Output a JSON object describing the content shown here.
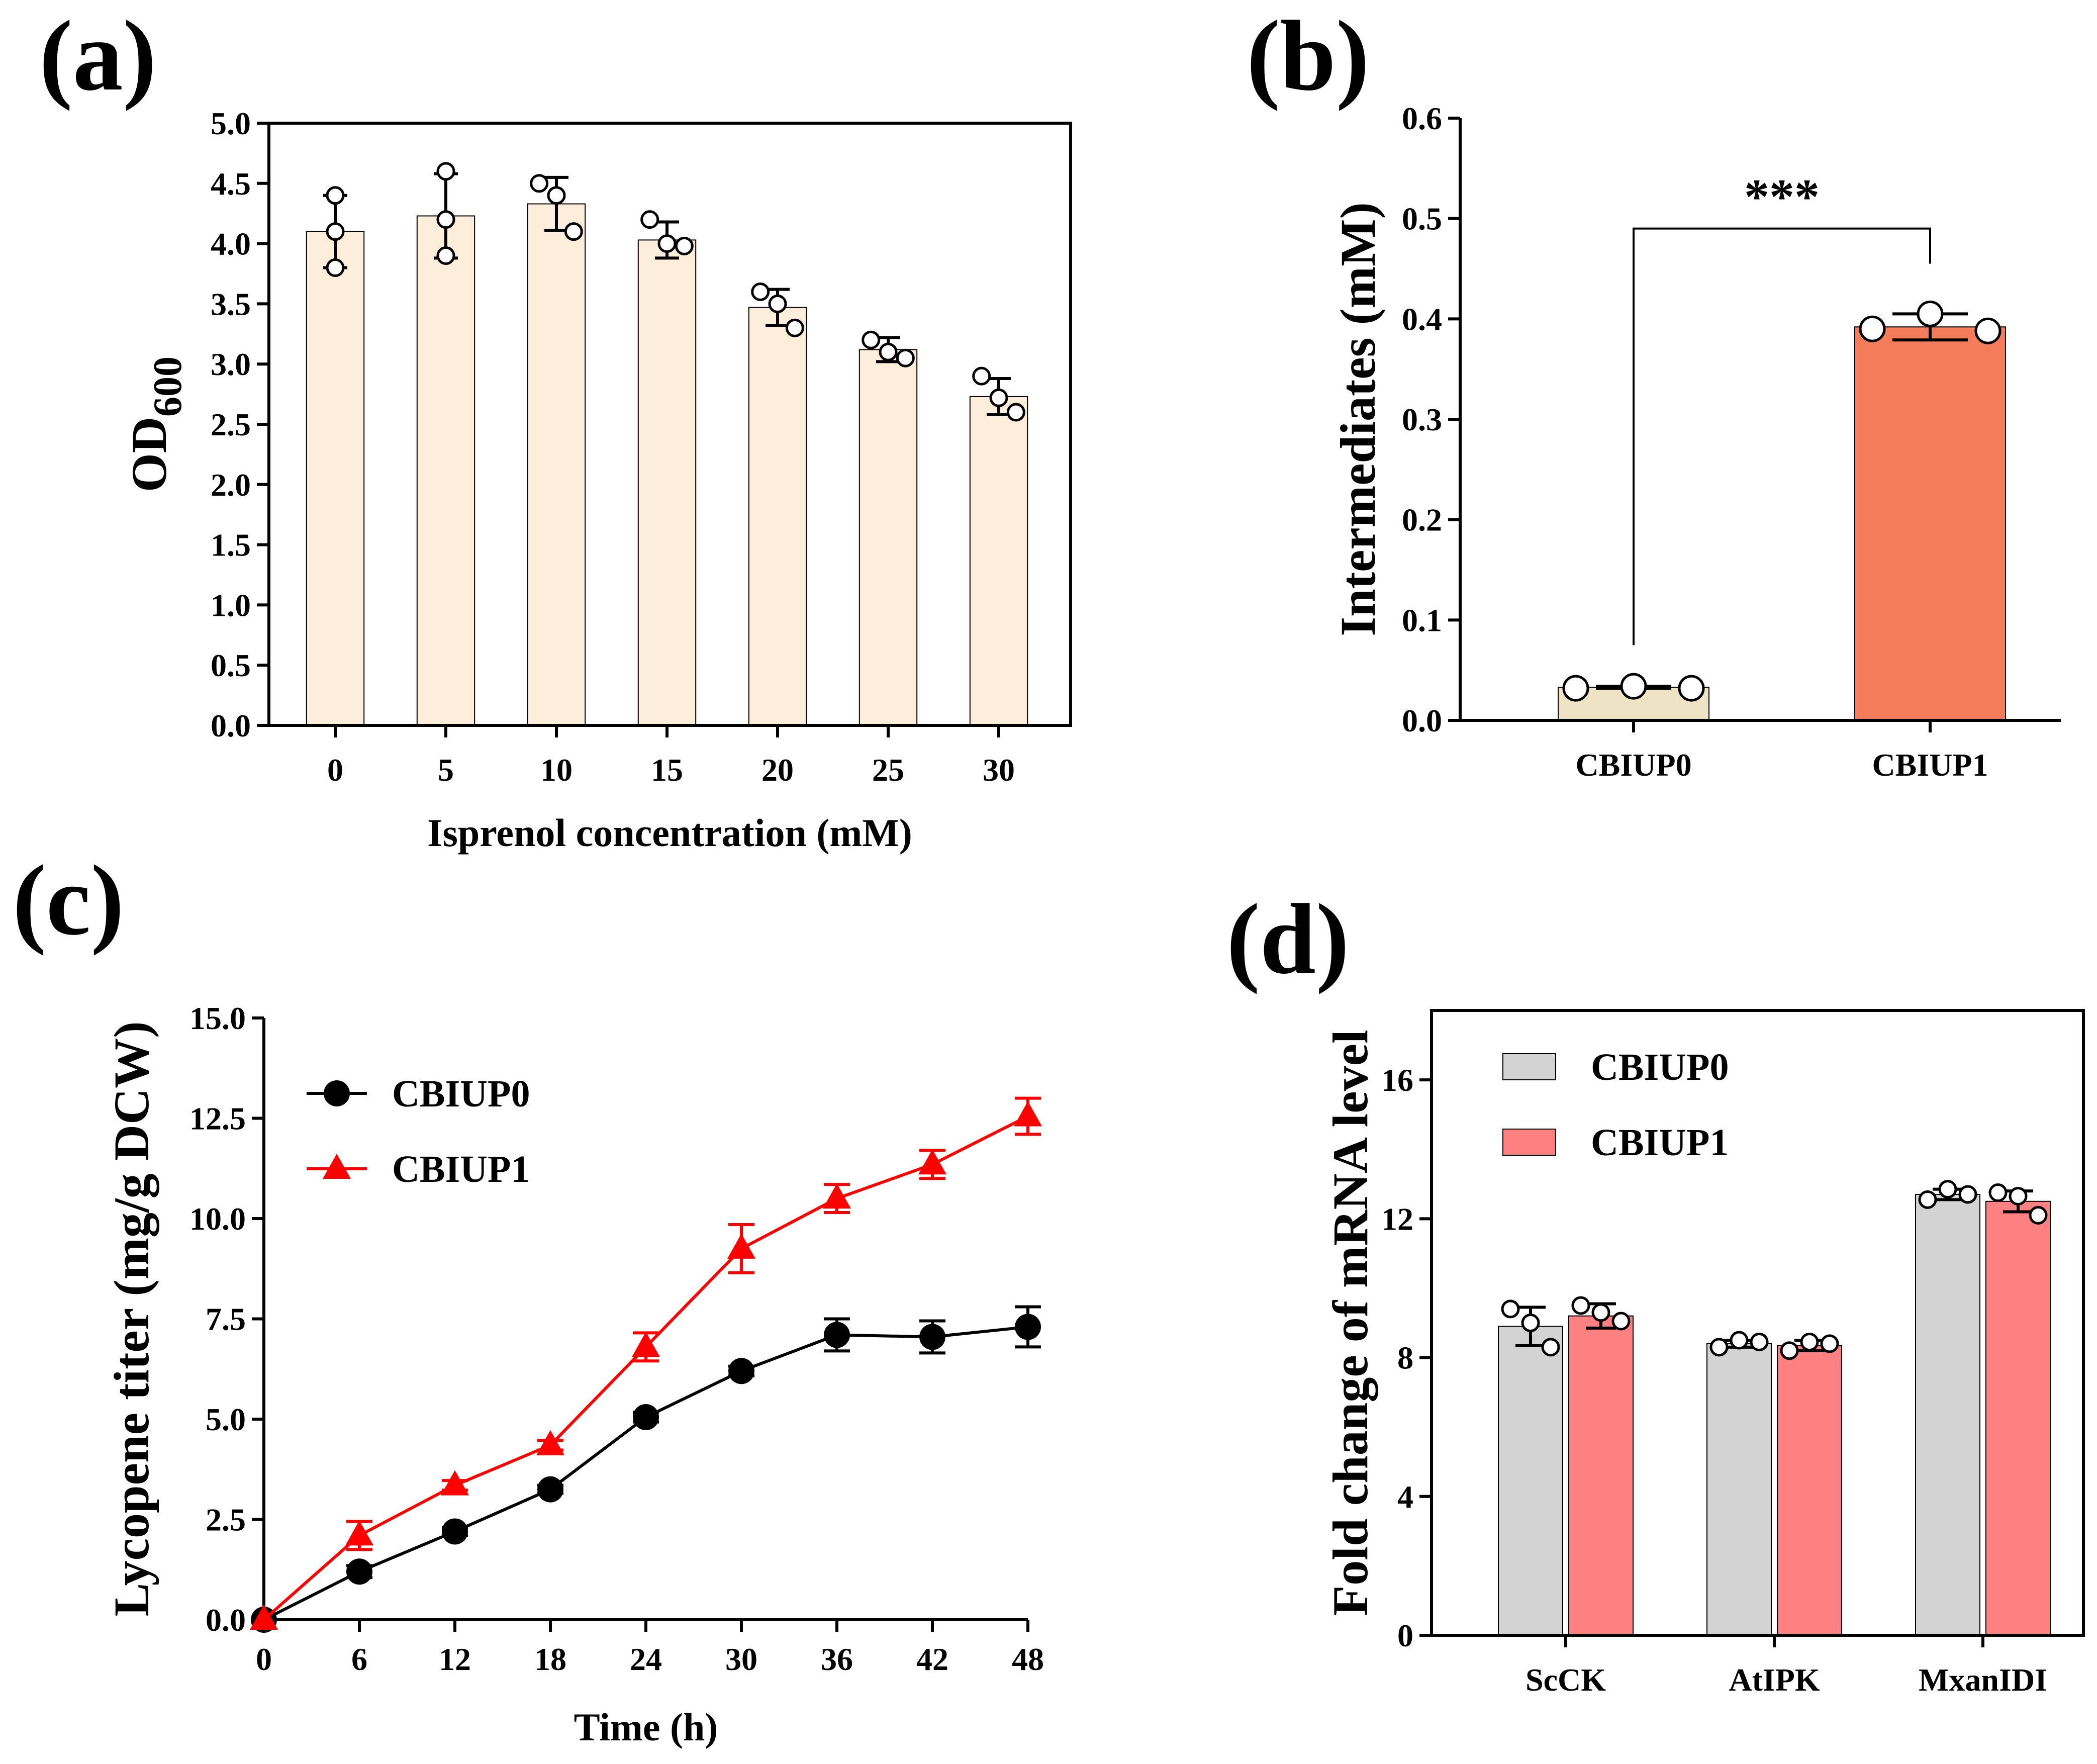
{
  "chart_data": [
    {
      "panel_label": "(a)",
      "type": "bar",
      "categories": [
        "0",
        "5",
        "10",
        "15",
        "20",
        "25",
        "30"
      ],
      "values": [
        4.1,
        4.23,
        4.33,
        4.03,
        3.47,
        3.12,
        2.73
      ],
      "errors": [
        0.3,
        0.35,
        0.22,
        0.15,
        0.15,
        0.1,
        0.15
      ],
      "replicates": [
        [
          4.4,
          4.1,
          3.8
        ],
        [
          4.6,
          4.2,
          3.9
        ],
        [
          4.5,
          4.4,
          4.1
        ],
        [
          4.2,
          4.0,
          3.98
        ],
        [
          3.6,
          3.5,
          3.3
        ],
        [
          3.2,
          3.1,
          3.05
        ],
        [
          2.9,
          2.72,
          2.6
        ]
      ],
      "xlabel": "Isprenol concentration (mM)",
      "ylabel_main": "OD",
      "ylabel_sub": "600",
      "ylim": [
        0,
        5.0
      ],
      "yticks": [
        "0.0",
        "0.5",
        "1.0",
        "1.5",
        "2.0",
        "2.5",
        "3.0",
        "3.5",
        "4.0",
        "4.5",
        "5.0"
      ],
      "bar_color": "#fdeedc"
    },
    {
      "panel_label": "(b)",
      "type": "bar",
      "categories": [
        "CBIUP0",
        "CBIUP1"
      ],
      "values": [
        0.033,
        0.392
      ],
      "errors": [
        0.001,
        0.013
      ],
      "replicates": [
        [
          0.032,
          0.034,
          0.032
        ],
        [
          0.39,
          0.405,
          0.388
        ]
      ],
      "colors": [
        "#eee3c4",
        "#f47c5a"
      ],
      "ylabel": "Intermediates (mM)",
      "ylim": [
        0,
        0.6
      ],
      "yticks": [
        "0.0",
        "0.1",
        "0.2",
        "0.3",
        "0.4",
        "0.5",
        "0.6"
      ],
      "significance": "***"
    },
    {
      "panel_label": "(c)",
      "type": "line",
      "x": [
        0,
        6,
        12,
        18,
        24,
        30,
        36,
        42,
        48
      ],
      "xticks": [
        "0",
        "6",
        "12",
        "18",
        "24",
        "30",
        "36",
        "42",
        "48"
      ],
      "series": [
        {
          "name": "CBIUP0",
          "color": "#000000",
          "marker": "circle",
          "values": [
            0.0,
            1.2,
            2.2,
            3.25,
            5.05,
            6.2,
            7.1,
            7.05,
            7.3
          ],
          "errors": [
            0,
            0.15,
            0.1,
            0.1,
            0.12,
            0.12,
            0.4,
            0.4,
            0.5
          ]
        },
        {
          "name": "CBIUP1",
          "color": "#ff0000",
          "marker": "triangle",
          "values": [
            0.0,
            2.1,
            3.35,
            4.35,
            6.8,
            9.25,
            10.5,
            11.35,
            12.55
          ],
          "errors": [
            0,
            0.35,
            0.12,
            0.12,
            0.35,
            0.6,
            0.35,
            0.35,
            0.45
          ]
        }
      ],
      "xlabel": "Time (h)",
      "ylabel": "Lycopene titer (mg/g DCW)",
      "xlim": [
        0,
        48
      ],
      "ylim": [
        0,
        15.0
      ],
      "yticks": [
        "0.0",
        "2.5",
        "5.0",
        "7.5",
        "10.0",
        "12.5",
        "15.0"
      ],
      "legend": "top-left"
    },
    {
      "panel_label": "(d)",
      "type": "bar",
      "categories": [
        "ScCK",
        "AtIPK",
        "MxanIDI"
      ],
      "series": [
        {
          "name": "CBIUP0",
          "color": "#d3d3d3",
          "values": [
            8.9,
            8.4,
            12.7
          ],
          "errors": [
            0.55,
            0.1,
            0.15
          ],
          "replicates": [
            [
              9.4,
              9.0,
              8.3
            ],
            [
              8.3,
              8.5,
              8.45
            ],
            [
              12.55,
              12.85,
              12.7
            ]
          ]
        },
        {
          "name": "CBIUP1",
          "color": "#ff8080",
          "values": [
            9.2,
            8.35,
            12.5
          ],
          "errors": [
            0.35,
            0.15,
            0.3
          ],
          "replicates": [
            [
              9.5,
              9.3,
              9.05
            ],
            [
              8.2,
              8.45,
              8.4
            ],
            [
              12.75,
              12.65,
              12.1
            ]
          ]
        }
      ],
      "ylabel": "Fold change of mRNA level",
      "ylim": [
        0,
        18
      ],
      "yticks": [
        "0",
        "4",
        "8",
        "12",
        "16"
      ],
      "legend": "top-left"
    }
  ]
}
